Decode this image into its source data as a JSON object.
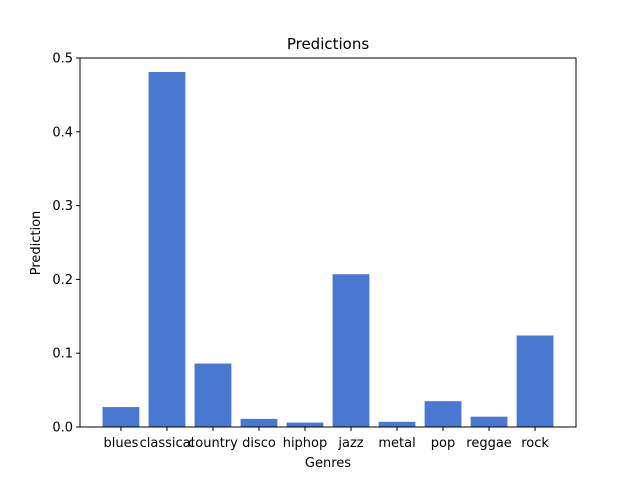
{
  "chart_data": {
    "type": "bar",
    "title": "Predictions",
    "xlabel": "Genres",
    "ylabel": "Prediction",
    "categories": [
      "blues",
      "classical",
      "country",
      "disco",
      "hiphop",
      "jazz",
      "metal",
      "pop",
      "reggae",
      "rock"
    ],
    "values": [
      0.027,
      0.481,
      0.086,
      0.011,
      0.006,
      0.207,
      0.007,
      0.035,
      0.014,
      0.124
    ],
    "ylim": [
      0,
      0.5
    ],
    "yticks": [
      "0.0",
      "0.1",
      "0.2",
      "0.3",
      "0.4",
      "0.5"
    ],
    "grid": false,
    "bar_color": "#4878d0"
  }
}
